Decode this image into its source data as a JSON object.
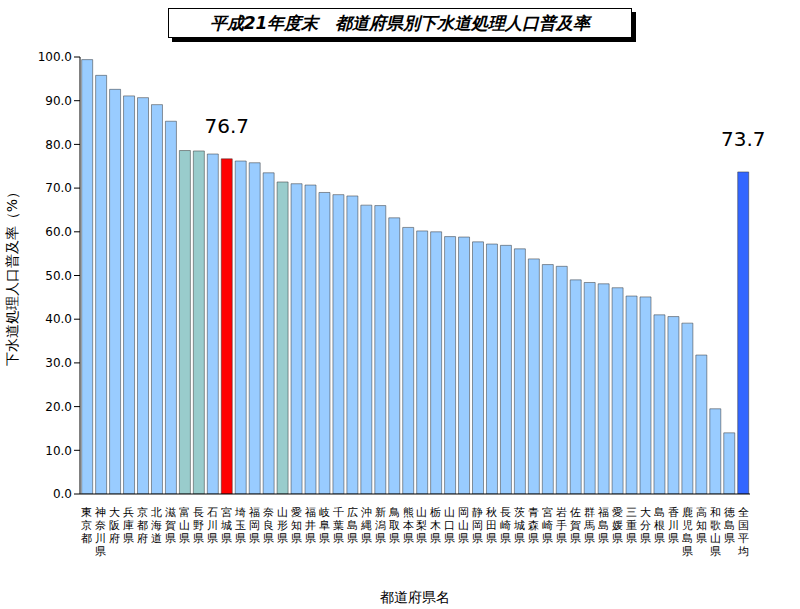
{
  "chart_data": {
    "type": "bar",
    "title": "平成21年度末　都道府県別下水道処理人口普及率",
    "x_label": "都道府県名",
    "y_label": "下水道処理人口普及率（%）",
    "categories": [
      "東京都",
      "神奈川県",
      "大阪府",
      "兵庫県",
      "京都府",
      "北海道",
      "滋賀県",
      "富山県",
      "長野県",
      "石川県",
      "宮城県",
      "埼玉県",
      "福岡県",
      "奈良県",
      "山形県",
      "愛知県",
      "福井県",
      "岐阜県",
      "千葉県",
      "広島県",
      "沖縄県",
      "新潟県",
      "鳥取県",
      "熊本県",
      "山梨県",
      "栃木県",
      "山口県",
      "岡山県",
      "静岡県",
      "秋田県",
      "長崎県",
      "茨城県",
      "青森県",
      "宮崎県",
      "岩手県",
      "佐賀県",
      "群馬県",
      "福島県",
      "愛媛県",
      "三重県",
      "大分県",
      "島根県",
      "香川県",
      "鹿児島県",
      "高知県",
      "和歌山県",
      "徳島県",
      "全国平均"
    ],
    "values": [
      99.4,
      95.8,
      92.6,
      91.1,
      90.7,
      89.1,
      85.3,
      78.6,
      78.5,
      77.8,
      76.7,
      76.2,
      75.8,
      73.5,
      71.4,
      71.0,
      70.7,
      69.0,
      68.5,
      68.2,
      66.1,
      66.0,
      63.2,
      61.0,
      60.2,
      60.0,
      58.9,
      58.8,
      57.7,
      57.2,
      56.9,
      56.1,
      53.8,
      52.5,
      52.1,
      49.0,
      48.4,
      48.1,
      47.2,
      45.3,
      45.1,
      41.0,
      40.6,
      39.1,
      31.8,
      19.5,
      14.0,
      73.7
    ],
    "colors": [
      "#99ccff",
      "#99ccff",
      "#99ccff",
      "#99ccff",
      "#99ccff",
      "#99ccff",
      "#99ccff",
      "#99cccc",
      "#99cccc",
      "#99ccff",
      "#ff0000",
      "#99ccff",
      "#99ccff",
      "#99ccff",
      "#99cccc",
      "#99ccff",
      "#99ccff",
      "#99ccff",
      "#99ccff",
      "#99ccff",
      "#99ccff",
      "#99ccff",
      "#99ccff",
      "#99ccff",
      "#99ccff",
      "#99ccff",
      "#99ccff",
      "#99ccff",
      "#99ccff",
      "#99ccff",
      "#99ccff",
      "#99ccff",
      "#99ccff",
      "#99ccff",
      "#99ccff",
      "#99ccff",
      "#99ccff",
      "#99ccff",
      "#99ccff",
      "#99ccff",
      "#99ccff",
      "#99ccff",
      "#99ccff",
      "#99ccff",
      "#99ccff",
      "#99ccff",
      "#99ccff",
      "#3366ff"
    ],
    "annotations": [
      {
        "category": "宮城県",
        "text": "76.7"
      },
      {
        "category": "全国平均",
        "text": "73.7"
      }
    ],
    "ylim": [
      0,
      100
    ],
    "yticks": [
      {
        "value": 0,
        "label": "0.0"
      },
      {
        "value": 10,
        "label": "10.0"
      },
      {
        "value": 20,
        "label": "20.0"
      },
      {
        "value": 30,
        "label": "30.0"
      },
      {
        "value": 40,
        "label": "40.0"
      },
      {
        "value": 50,
        "label": "50.0"
      },
      {
        "value": 60,
        "label": "60.0"
      },
      {
        "value": 70,
        "label": "70.0"
      },
      {
        "value": 80,
        "label": "80.0"
      },
      {
        "value": 90,
        "label": "90.0"
      },
      {
        "value": 100,
        "label": "100.0"
      }
    ],
    "grid": false
  }
}
